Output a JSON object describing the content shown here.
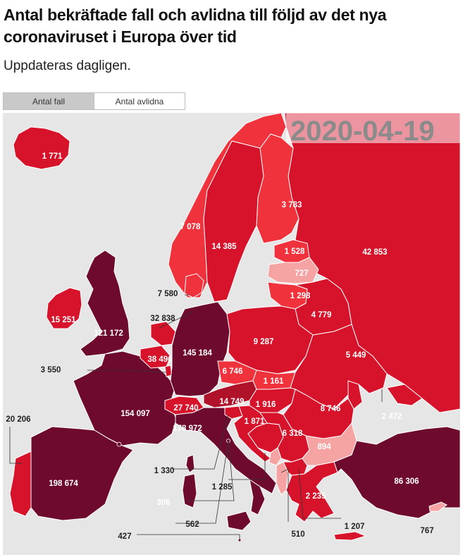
{
  "header": {
    "title": "Antal bekräftade fall och avlidna till följd av det nya coronaviruset i Europa över tid",
    "subtitle": "Uppdateras dagligen."
  },
  "tabs": [
    {
      "label": "Antal fall",
      "active": true
    },
    {
      "label": "Antal avlidna",
      "active": false
    }
  ],
  "map": {
    "date": "2020-04-19",
    "colors": {
      "sea": "#e6e6e6",
      "nonEurope": "#e6e6e6",
      "highest": "#6e0a2e",
      "high": "#b0122a",
      "medium": "#d6132a",
      "low": "#f0323c",
      "lowest": "#f5a3a3",
      "border": "#ffffff"
    },
    "labels": {
      "iceland": "1 771",
      "norway": "7 078",
      "sweden": "14 385",
      "finland": "3 783",
      "russia": "42 853",
      "estonia": "1 528",
      "latvia": "727",
      "lithuania": "1 298",
      "denmark": "7 580",
      "belarus": "4 779",
      "ireland": "15 251",
      "uk": "121 172",
      "netherlands": "32 838",
      "belgium": "38 496",
      "germany": "145 184",
      "poland": "9 287",
      "ukraine": "5 449",
      "luxembourg": "3 550",
      "czechia": "6 746",
      "slovakia": "1 161",
      "france": "154 097",
      "switzerland": "27 740",
      "austria": "14 749",
      "hungary": "1 916",
      "moldova": "2 472",
      "romania": "8 746",
      "portugal": "20 206",
      "italy": "178 972",
      "croatia": "1 871",
      "serbia": "6 318",
      "bulgaria": "894",
      "spain": "198 674",
      "slovenia": "1 330",
      "bosnia": "1 285",
      "turkey": "86 306",
      "andorra": "306",
      "greece": "2 235",
      "sanmarino": "562",
      "macedonia": "1 207",
      "albania": "510",
      "cyprus": "767",
      "malta": "427"
    }
  }
}
